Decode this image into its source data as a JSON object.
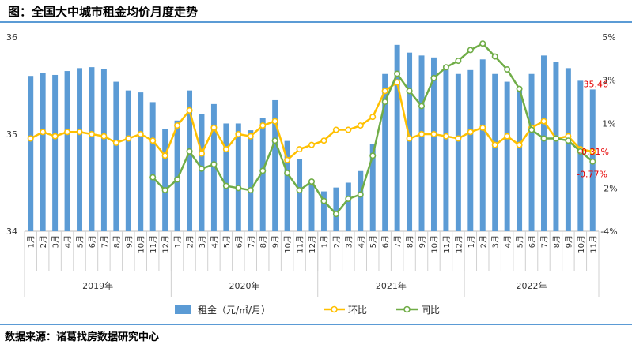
{
  "header": {
    "title": "图：全国大中城市租金均价月度走势"
  },
  "footer": {
    "source": "数据来源：诸葛找房数据研究中心"
  },
  "colors": {
    "bar": "#5b9bd5",
    "mom": "#ffc000",
    "yoy": "#70ad47",
    "annotation": "#e60000",
    "rule": "#5b9bd5"
  },
  "chart_data": {
    "type": "bar",
    "categories": [
      "1月",
      "2月",
      "3月",
      "4月",
      "5月",
      "6月",
      "7月",
      "8月",
      "9月",
      "10月",
      "11月",
      "12月",
      "1月",
      "2月",
      "3月",
      "4月",
      "5月",
      "6月",
      "7月",
      "8月",
      "9月",
      "10月",
      "11月",
      "12月",
      "1月",
      "2月",
      "3月",
      "4月",
      "5月",
      "6月",
      "7月",
      "8月",
      "9月",
      "10月",
      "11月",
      "12月",
      "1月",
      "2月",
      "3月",
      "4月",
      "5月",
      "6月",
      "7月",
      "8月",
      "9月",
      "10月",
      "11月"
    ],
    "years": [
      {
        "label": "2019年",
        "start": 0,
        "end": 11
      },
      {
        "label": "2020年",
        "start": 12,
        "end": 23
      },
      {
        "label": "2021年",
        "start": 24,
        "end": 35
      },
      {
        "label": "2022年",
        "start": 36,
        "end": 46
      }
    ],
    "y_left": {
      "ticks": [
        "34",
        "35",
        "36"
      ],
      "lim": [
        34,
        36
      ]
    },
    "y_right": {
      "ticks": [
        "-4%",
        "-2%",
        "1%",
        "3%",
        "5%"
      ],
      "lim": [
        -4,
        5
      ]
    },
    "series": [
      {
        "name": "租金（元/㎡/月）",
        "type": "bar",
        "axis": "left",
        "values": [
          35.6,
          35.63,
          35.61,
          35.65,
          35.68,
          35.69,
          35.67,
          35.54,
          35.45,
          35.43,
          35.33,
          35.05,
          35.14,
          35.45,
          35.21,
          35.31,
          35.11,
          35.11,
          35.04,
          35.17,
          35.35,
          34.93,
          34.74,
          34.51,
          34.41,
          34.45,
          34.5,
          34.62,
          34.9,
          35.62,
          35.92,
          35.84,
          35.81,
          35.79,
          35.71,
          35.62,
          35.66,
          35.77,
          35.62,
          35.54,
          35.47,
          35.62,
          35.81,
          35.74,
          35.68,
          35.55,
          35.46
        ]
      },
      {
        "name": "环比",
        "type": "line",
        "axis": "right",
        "values": [
          0.3,
          0.6,
          0.4,
          0.6,
          0.6,
          0.5,
          0.4,
          0.1,
          0.3,
          0.5,
          0.2,
          -0.5,
          0.9,
          1.6,
          -0.4,
          0.8,
          -0.2,
          0.5,
          0.4,
          0.9,
          1.1,
          -0.7,
          -0.2,
          0.0,
          0.2,
          0.7,
          0.7,
          0.9,
          1.3,
          2.5,
          2.9,
          0.3,
          0.5,
          0.5,
          0.4,
          0.3,
          0.6,
          0.8,
          0.0,
          0.4,
          0.0,
          0.8,
          1.1,
          0.3,
          0.4,
          -0.2,
          -0.31
        ]
      },
      {
        "name": "同比",
        "type": "line",
        "axis": "right",
        "values": [
          null,
          null,
          null,
          null,
          null,
          null,
          null,
          null,
          null,
          null,
          -1.5,
          -2.1,
          -1.6,
          -0.3,
          -1.1,
          -0.9,
          -1.9,
          -2.0,
          -2.1,
          -1.2,
          0.2,
          -1.3,
          -2.1,
          -1.7,
          -2.6,
          -3.2,
          -2.5,
          -2.3,
          -0.5,
          2.0,
          3.3,
          2.5,
          1.8,
          3.1,
          3.6,
          3.9,
          4.4,
          4.7,
          4.1,
          3.5,
          2.6,
          0.7,
          0.3,
          0.3,
          0.2,
          -0.3,
          -0.77
        ]
      }
    ],
    "annotations": [
      "35.46",
      "-0.31%",
      "-0.77%"
    ]
  }
}
